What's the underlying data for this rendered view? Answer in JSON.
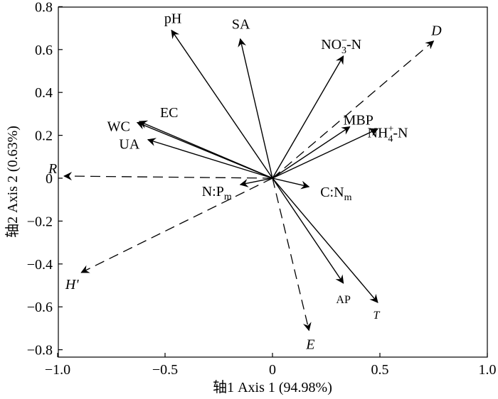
{
  "chart_data": {
    "type": "biplot",
    "xlabel": "轴1 Axis 1 (94.98%)",
    "ylabel": "轴2 Axis 2 (0.63%)",
    "xlim": [
      -1.0,
      1.0
    ],
    "ylim": [
      -0.85,
      0.8
    ],
    "xticks": [
      "−1.0",
      "−0.5",
      "0",
      "0.5",
      "1.0"
    ],
    "yticks": [
      "0.8",
      "0.6",
      "0.4",
      "0.2",
      "0",
      "−0.2",
      "−0.4",
      "−0.6",
      "−0.8"
    ],
    "response_vectors": [
      {
        "label": "pH",
        "x": -0.47,
        "y": 0.69
      },
      {
        "label": "SA",
        "x": -0.15,
        "y": 0.65
      },
      {
        "label": "NO3−-N",
        "x": 0.33,
        "y": 0.57
      },
      {
        "label": "WC",
        "x": -0.63,
        "y": 0.26
      },
      {
        "label": "EC",
        "x": -0.62,
        "y": 0.265
      },
      {
        "label": "UA",
        "x": -0.58,
        "y": 0.18
      },
      {
        "label": "MBP",
        "x": 0.36,
        "y": 0.24
      },
      {
        "label": "NH4+-N",
        "x": 0.49,
        "y": 0.23
      },
      {
        "label": "N:Pm",
        "x": -0.15,
        "y": -0.03
      },
      {
        "label": "C:Nm",
        "x": 0.17,
        "y": -0.04
      },
      {
        "label": "AP",
        "x": 0.33,
        "y": -0.49
      },
      {
        "label": "T",
        "x": 0.49,
        "y": -0.58
      }
    ],
    "explanatory_vectors": [
      {
        "label": "D",
        "x": 0.75,
        "y": 0.64
      },
      {
        "label": "R",
        "x": -0.97,
        "y": 0.01
      },
      {
        "label": "H'",
        "x": -0.89,
        "y": -0.44
      },
      {
        "label": "E",
        "x": 0.17,
        "y": -0.71
      }
    ]
  }
}
